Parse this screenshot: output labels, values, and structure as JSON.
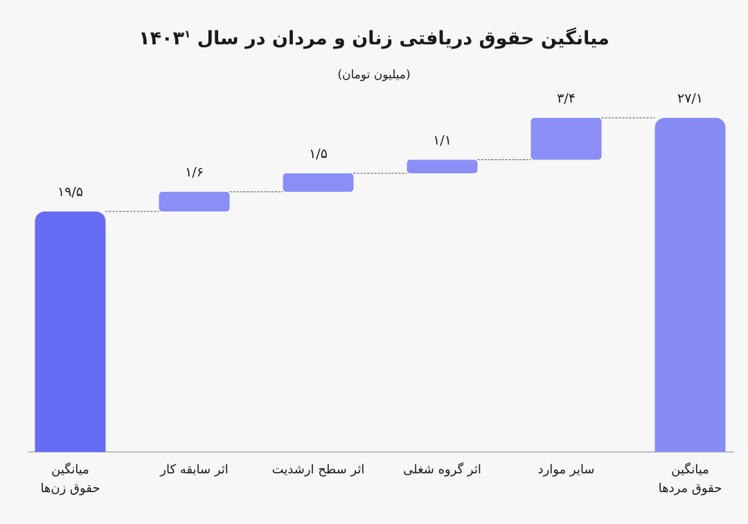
{
  "chart_data": {
    "type": "waterfall",
    "title": "میانگین حقوق دریافتی زنان و مردان  در سال ۱۴۰۳",
    "title_footnote": "۱",
    "subtitle": "(میلیون تومان)",
    "categories": [
      "میانگین\nحقوق زن‌ها",
      "اثر سابقه کار",
      "اثر سطح ارشدیت",
      "اثر گروه شغلی",
      "سایر موارد",
      "میانگین\nحقوق مردها"
    ],
    "measure": [
      "absolute",
      "relative",
      "relative",
      "relative",
      "relative",
      "total"
    ],
    "values": [
      19.5,
      1.6,
      1.5,
      1.1,
      3.4,
      27.1
    ],
    "value_labels": [
      "۱۹/۵",
      "۱/۶",
      "۱/۵",
      "۱/۱",
      "۳/۴",
      "۲۷/۱"
    ],
    "colors": [
      "#666cf3",
      "#8a8ef5",
      "#8a8ef5",
      "#8a8ef5",
      "#8a8ef5",
      "#878cf4"
    ]
  }
}
